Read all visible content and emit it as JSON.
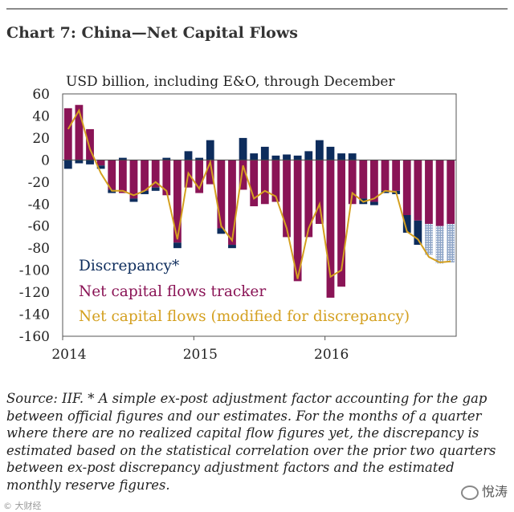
{
  "title": "Chart 7: China—Net Capital Flows",
  "source_note": "Source: IIF. * A simple ex-post adjustment factor accounting for the gap between official figures and our estimates. For the months of a quarter where there are no realized capital flow figures yet, the discrepancy is estimated based on the statistical correlation over the prior two quarters between ex-post discrepancy adjustment factors and the estimated monthly reserve figures.",
  "watermark": "悅涛",
  "bottom_caption": "© 大财经",
  "colors": {
    "tracker": "#8a1456",
    "discrepancy": "#0d2c5c",
    "line": "#d4a020",
    "estimated_discrepancy": "#8fa6c8"
  },
  "chart_data": {
    "type": "bar",
    "subtitle": "USD billion, including E&O, through December",
    "ylim": [
      -160,
      60
    ],
    "yticks": [
      60,
      40,
      20,
      0,
      -20,
      -40,
      -60,
      -80,
      -100,
      -120,
      -140,
      -160
    ],
    "xticks": [
      {
        "label": "2014",
        "index": 0
      },
      {
        "label": "2015",
        "index": 12
      },
      {
        "label": "2016",
        "index": 24
      }
    ],
    "months": [
      "Jan-14",
      "Feb-14",
      "Mar-14",
      "Apr-14",
      "May-14",
      "Jun-14",
      "Jul-14",
      "Aug-14",
      "Sep-14",
      "Oct-14",
      "Nov-14",
      "Dec-14",
      "Jan-15",
      "Feb-15",
      "Mar-15",
      "Apr-15",
      "May-15",
      "Jun-15",
      "Jul-15",
      "Aug-15",
      "Sep-15",
      "Oct-15",
      "Nov-15",
      "Dec-15",
      "Jan-16",
      "Feb-16",
      "Mar-16",
      "Apr-16",
      "May-16",
      "Jun-16",
      "Jul-16",
      "Aug-16",
      "Sep-16",
      "Oct-16",
      "Nov-16",
      "Dec-16"
    ],
    "legend": [
      {
        "key": "discrepancy",
        "label": "Discrepancy*"
      },
      {
        "key": "tracker",
        "label": "Net capital flows tracker"
      },
      {
        "key": "line",
        "label": "Net capital flows (modified for discrepancy)"
      }
    ],
    "series": [
      {
        "name": "Net capital flows tracker",
        "key": "tracker",
        "values": [
          47,
          50,
          28,
          -5,
          -27,
          -30,
          -35,
          -28,
          -25,
          -32,
          -75,
          -25,
          -30,
          -22,
          -62,
          -77,
          -27,
          -42,
          -40,
          -38,
          -70,
          -110,
          -70,
          -58,
          -125,
          -115,
          -40,
          -35,
          -38,
          -28,
          -28,
          -50,
          -55,
          -58,
          -60,
          -58
        ]
      },
      {
        "name": "Discrepancy*",
        "key": "discrepancy",
        "estimated_from_index": 33,
        "values": [
          -8,
          -3,
          -4,
          -3,
          -3,
          2,
          -3,
          -3,
          -3,
          2,
          -5,
          8,
          2,
          18,
          -5,
          -3,
          20,
          6,
          12,
          4,
          5,
          4,
          8,
          18,
          12,
          6,
          6,
          -5,
          -3,
          -2,
          -3,
          -16,
          -22,
          -28,
          -34,
          -35
        ]
      },
      {
        "name": "Net capital flows (modified for discrepancy)",
        "key": "line",
        "type": "line",
        "values": [
          28,
          45,
          10,
          -12,
          -28,
          -28,
          -32,
          -28,
          -20,
          -28,
          -72,
          -12,
          -26,
          -2,
          -60,
          -73,
          -5,
          -35,
          -28,
          -33,
          -62,
          -108,
          -62,
          -40,
          -106,
          -100,
          -30,
          -38,
          -35,
          -28,
          -29,
          -65,
          -72,
          -88,
          -93,
          -92
        ]
      }
    ]
  }
}
